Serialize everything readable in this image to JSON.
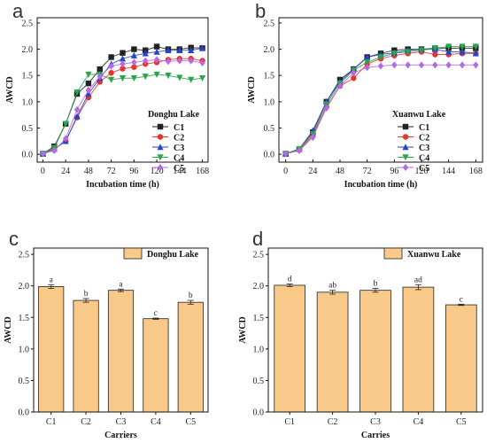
{
  "chart_data": [
    {
      "panel": "a",
      "type": "line",
      "legend_title": "Donghu Lake",
      "xlabel": "Incubation time (h)",
      "ylabel": "AWCD",
      "x": [
        0,
        12,
        24,
        36,
        48,
        60,
        72,
        84,
        96,
        108,
        120,
        132,
        144,
        156,
        168
      ],
      "x_ticks": [
        "0",
        "24",
        "48",
        "72",
        "96",
        "120",
        "144",
        "168"
      ],
      "y_ticks": [
        "0.0",
        "0.5",
        "1.0",
        "1.5",
        "2.0",
        "2.5"
      ],
      "xlim": [
        -6,
        174
      ],
      "ylim": [
        -0.15,
        2.6
      ],
      "legend_position": "right",
      "series": [
        {
          "name": "C1",
          "marker": "square",
          "color": "#222222",
          "values": [
            0.01,
            0.15,
            0.58,
            1.15,
            1.35,
            1.62,
            1.85,
            1.93,
            2.0,
            1.98,
            2.05,
            2.0,
            2.0,
            2.03,
            2.02
          ]
        },
        {
          "name": "C2",
          "marker": "circle",
          "color": "#e8322b",
          "values": [
            0.01,
            0.1,
            0.25,
            0.7,
            1.08,
            1.38,
            1.55,
            1.63,
            1.66,
            1.72,
            1.75,
            1.8,
            1.82,
            1.82,
            1.78
          ]
        },
        {
          "name": "C3",
          "marker": "triangle-up",
          "color": "#2346c8",
          "values": [
            0.01,
            0.1,
            0.25,
            0.72,
            1.15,
            1.45,
            1.72,
            1.82,
            1.88,
            1.92,
            1.95,
            1.98,
            1.98,
            1.98,
            2.02
          ]
        },
        {
          "name": "C4",
          "marker": "triangle-down",
          "color": "#2aa54c",
          "values": [
            0.01,
            0.12,
            0.58,
            1.18,
            1.52,
            1.52,
            1.42,
            1.45,
            1.45,
            1.48,
            1.52,
            1.5,
            1.46,
            1.42,
            1.45
          ]
        },
        {
          "name": "C5",
          "marker": "diamond",
          "color": "#b46ae0",
          "values": [
            0.01,
            0.07,
            0.3,
            0.85,
            1.22,
            1.48,
            1.68,
            1.72,
            1.75,
            1.78,
            1.8,
            1.77,
            1.78,
            1.78,
            1.74
          ]
        }
      ]
    },
    {
      "panel": "b",
      "type": "line",
      "legend_title": "Xuanwu Lake",
      "xlabel": "Incubation time (h)",
      "ylabel": "AWCD",
      "x": [
        0,
        12,
        24,
        36,
        48,
        60,
        72,
        84,
        96,
        108,
        120,
        132,
        144,
        156,
        168
      ],
      "x_ticks": [
        "0",
        "24",
        "48",
        "72",
        "96",
        "120",
        "144",
        "168"
      ],
      "y_ticks": [
        "0.0",
        "0.5",
        "1.0",
        "1.5",
        "2.0",
        "2.5"
      ],
      "xlim": [
        -6,
        174
      ],
      "ylim": [
        -0.15,
        2.6
      ],
      "legend_position": "right",
      "series": [
        {
          "name": "C1",
          "marker": "square",
          "color": "#222222",
          "values": [
            0.01,
            0.1,
            0.42,
            1.0,
            1.42,
            1.62,
            1.85,
            1.92,
            1.98,
            2.0,
            2.0,
            2.02,
            2.02,
            2.02,
            2.02
          ]
        },
        {
          "name": "C2",
          "marker": "circle",
          "color": "#e8322b",
          "values": [
            0.01,
            0.08,
            0.35,
            0.9,
            1.3,
            1.45,
            1.72,
            1.82,
            1.88,
            1.92,
            1.95,
            1.9,
            1.9,
            1.92,
            1.92
          ]
        },
        {
          "name": "C3",
          "marker": "triangle-up",
          "color": "#2346c8",
          "values": [
            0.01,
            0.1,
            0.45,
            1.0,
            1.38,
            1.62,
            1.85,
            1.9,
            1.93,
            1.98,
            2.0,
            2.0,
            1.95,
            1.95,
            1.92
          ]
        },
        {
          "name": "C4",
          "marker": "triangle-down",
          "color": "#2aa54c",
          "values": [
            0.01,
            0.1,
            0.38,
            0.95,
            1.35,
            1.6,
            1.75,
            1.85,
            1.92,
            1.95,
            1.98,
            2.02,
            2.05,
            2.05,
            2.05
          ]
        },
        {
          "name": "C5",
          "marker": "diamond",
          "color": "#b46ae0",
          "values": [
            0.01,
            0.07,
            0.32,
            0.88,
            1.3,
            1.55,
            1.65,
            1.68,
            1.7,
            1.7,
            1.7,
            1.7,
            1.7,
            1.7,
            1.7
          ]
        }
      ]
    },
    {
      "panel": "c",
      "type": "bar",
      "legend_title": "Donghu Lake",
      "xlabel": "Carriers",
      "ylabel": "AWCD",
      "categories": [
        "C1",
        "C2",
        "C3",
        "C4",
        "C5"
      ],
      "values": [
        1.99,
        1.77,
        1.93,
        1.48,
        1.74
      ],
      "errors": [
        0.03,
        0.03,
        0.02,
        0.01,
        0.03
      ],
      "significance": [
        "a",
        "b",
        "a",
        "c",
        "b"
      ],
      "y_ticks": [
        "0.0",
        "0.5",
        "1.0",
        "1.5",
        "2.0",
        "2.5"
      ],
      "ylim": [
        0,
        2.6
      ],
      "bar_color": "#f9c98a",
      "legend_position": "top-right"
    },
    {
      "panel": "d",
      "type": "bar",
      "legend_title": "Xuanwu Lake",
      "xlabel": "Carries",
      "ylabel": "AWCD",
      "categories": [
        "C1",
        "C2",
        "C3",
        "C4",
        "C5"
      ],
      "values": [
        2.01,
        1.9,
        1.93,
        1.98,
        1.7
      ],
      "errors": [
        0.02,
        0.03,
        0.03,
        0.04,
        0.01
      ],
      "significance": [
        "d",
        "ab",
        "b",
        "ad",
        "c"
      ],
      "y_ticks": [
        "0.0",
        "0.5",
        "1.0",
        "1.5",
        "2.0",
        "2.5"
      ],
      "ylim": [
        0,
        2.6
      ],
      "bar_color": "#f9c98a",
      "legend_position": "top-right"
    }
  ]
}
